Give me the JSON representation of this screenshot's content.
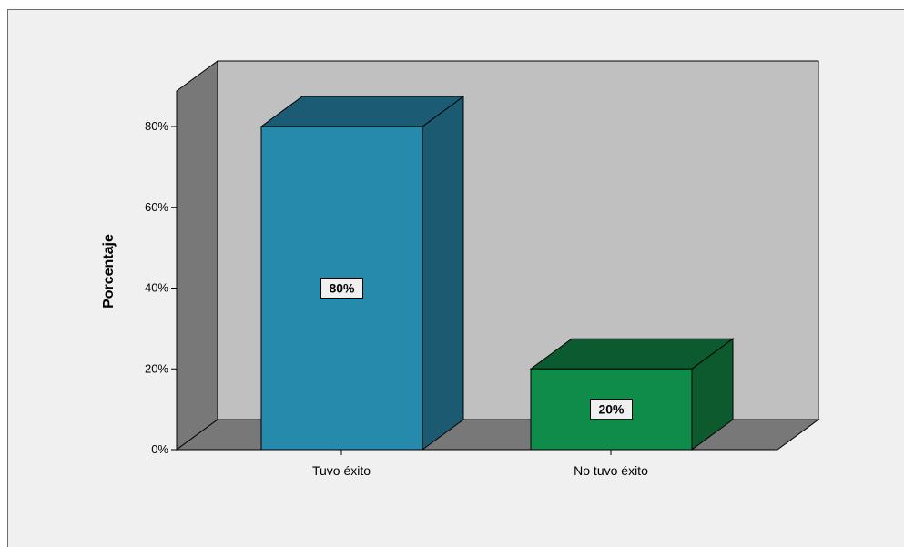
{
  "chart_data": {
    "type": "bar",
    "style": "3d",
    "categories": [
      "Tuvo éxito",
      "No tuvo éxito"
    ],
    "values": [
      80,
      20
    ],
    "data_labels": [
      "80%",
      "20%"
    ],
    "title": "",
    "xlabel": "",
    "ylabel": "Porcentaje",
    "ylim": [
      0,
      80
    ],
    "yticks": [
      0,
      20,
      40,
      60,
      80
    ],
    "ytick_labels": [
      "0%",
      "20%",
      "40%",
      "60%",
      "80%"
    ],
    "grid": false,
    "legend": "none",
    "colors": {
      "bars": [
        "#268aad",
        "#0f8c4a"
      ],
      "bar_tops": [
        "#1b5c74",
        "#0b5a30"
      ],
      "bar_sides": [
        "#1b5a70",
        "#0c5a2e"
      ],
      "back_wall": "#c0c0c0",
      "side_wall": "#787878",
      "floor": "#787878",
      "background": "#f0f0f0"
    }
  }
}
